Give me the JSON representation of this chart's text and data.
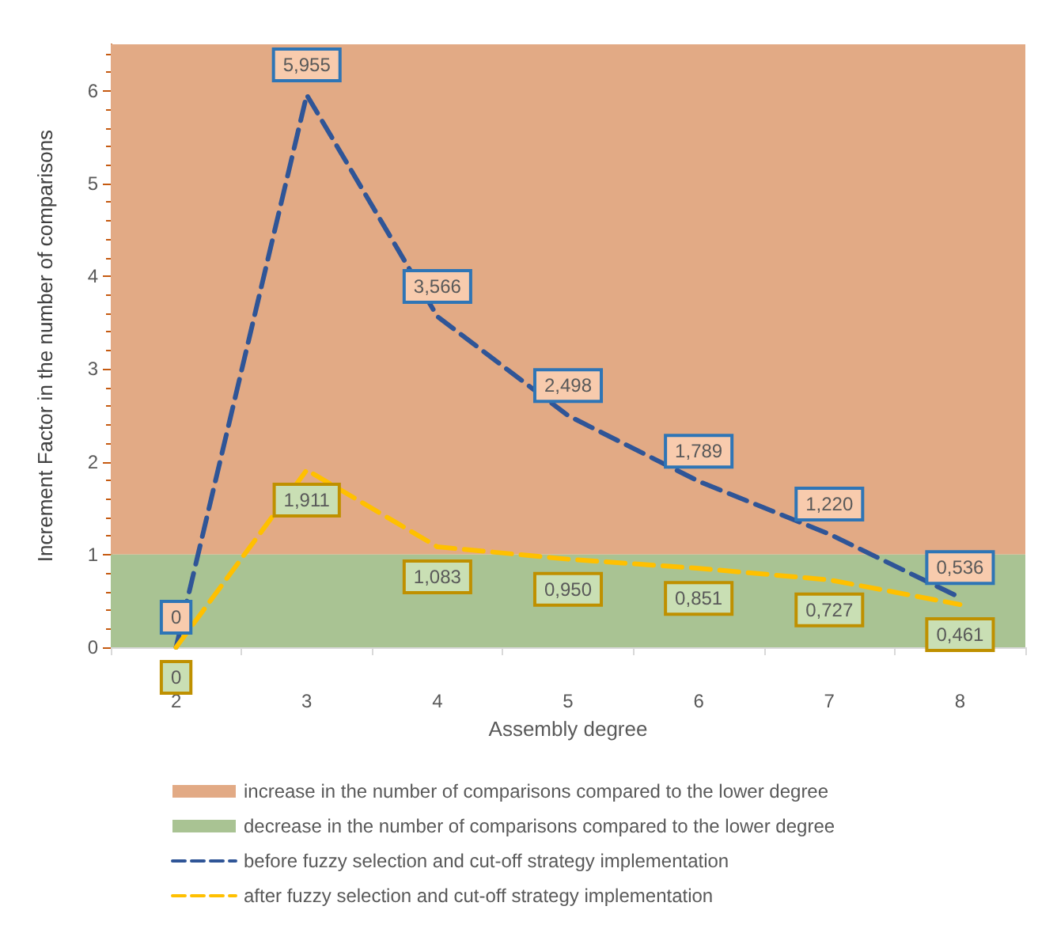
{
  "chart_data": {
    "type": "line",
    "xlabel": "Assembly degree",
    "ylabel": "Increment Factor in the number of comparisons",
    "categories": [
      "2",
      "3",
      "4",
      "5",
      "6",
      "7",
      "8"
    ],
    "series": [
      {
        "name": "before fuzzy selection and cut-off strategy implementation",
        "color": "#2f5597",
        "values": [
          0,
          5.955,
          3.566,
          2.498,
          1.789,
          1.22,
          0.536
        ],
        "value_labels": [
          "0",
          "5,955",
          "3,566",
          "2,498",
          "1,789",
          "1,220",
          "0,536"
        ]
      },
      {
        "name": "after fuzzy selection and cut-off strategy implementation",
        "color": "#ffc000",
        "values": [
          0,
          1.911,
          1.083,
          0.95,
          0.851,
          0.727,
          0.461
        ],
        "value_labels": [
          "0",
          "1,911",
          "1,083",
          "0,950",
          "0,851",
          "0,727",
          "0,461"
        ]
      }
    ],
    "bands": [
      {
        "axis": "y",
        "from": 1,
        "to": 6.5,
        "label": "increase in the number of comparisons compared to the lower degree",
        "color": "#e2aa85"
      },
      {
        "axis": "y",
        "from": 0,
        "to": 1,
        "label": "decrease in the number of comparisons compared to the lower degree",
        "color": "#a9c393"
      }
    ],
    "ylim": [
      0,
      6.5
    ],
    "yticks": [
      0,
      1,
      2,
      3,
      4,
      5,
      6
    ],
    "grid": false,
    "legend": "bottom",
    "marker": "none",
    "line_style": "dashed"
  }
}
